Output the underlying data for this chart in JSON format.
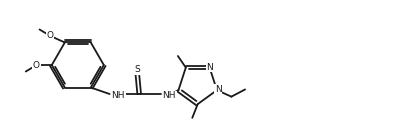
{
  "bg_color": "#ffffff",
  "bond_color": "#1a1a1a",
  "lw": 1.3,
  "fs": 6.5,
  "fig_w": 4.12,
  "fig_h": 1.3,
  "dpi": 100,
  "xlim": [
    -0.3,
    10.7
  ],
  "ylim": [
    -0.2,
    3.4
  ]
}
